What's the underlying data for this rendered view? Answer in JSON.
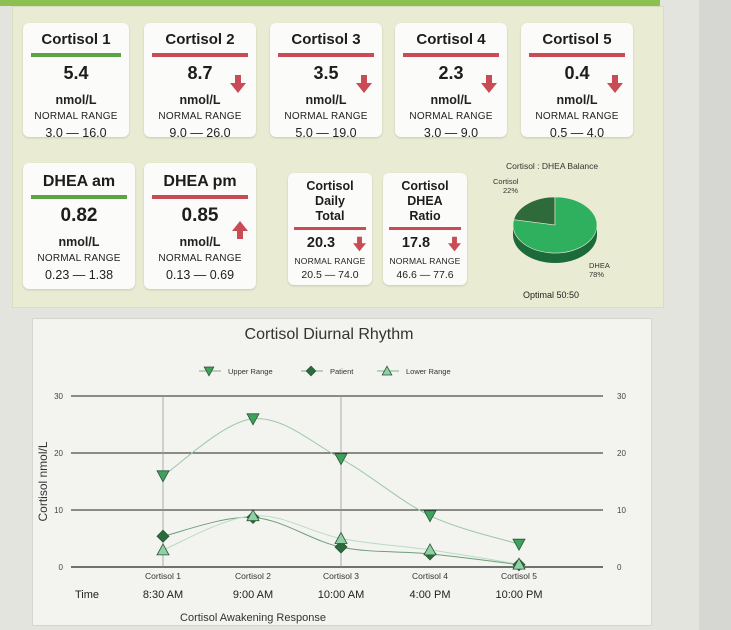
{
  "cards": [
    {
      "title": "Cortisol 1",
      "value": "5.4",
      "unit": "nmol/L",
      "range_label": "NORMAL RANGE",
      "range": "3.0 — 16.0",
      "status": "normal",
      "arrow": "none"
    },
    {
      "title": "Cortisol 2",
      "value": "8.7",
      "unit": "nmol/L",
      "range_label": "NORMAL RANGE",
      "range": "9.0 — 26.0",
      "status": "low",
      "arrow": "down"
    },
    {
      "title": "Cortisol 3",
      "value": "3.5",
      "unit": "nmol/L",
      "range_label": "NORMAL RANGE",
      "range": "5.0 — 19.0",
      "status": "low",
      "arrow": "down"
    },
    {
      "title": "Cortisol 4",
      "value": "2.3",
      "unit": "nmol/L",
      "range_label": "NORMAL RANGE",
      "range": "3.0 — 9.0",
      "status": "low",
      "arrow": "down"
    },
    {
      "title": "Cortisol 5",
      "value": "0.4",
      "unit": "nmol/L",
      "range_label": "NORMAL RANGE",
      "range": "0.5 — 4.0",
      "status": "low",
      "arrow": "down"
    },
    {
      "title": "DHEA am",
      "value": "0.82",
      "unit": "nmol/L",
      "range_label": "NORMAL RANGE",
      "range": "0.23 — 1.38",
      "status": "normal",
      "arrow": "none"
    },
    {
      "title": "DHEA pm",
      "value": "0.85",
      "unit": "nmol/L",
      "range_label": "NORMAL RANGE",
      "range": "0.13 — 0.69",
      "status": "high",
      "arrow": "up"
    }
  ],
  "small_cards": [
    {
      "title_lines": [
        "Cortisol",
        "Daily",
        "Total"
      ],
      "value": "20.3",
      "range_label": "NORMAL RANGE",
      "range": "20.5 — 74.0",
      "status": "low",
      "arrow": "down"
    },
    {
      "title_lines": [
        "Cortisol",
        "DHEA",
        "Ratio"
      ],
      "value": "17.8",
      "range_label": "NORMAL RANGE",
      "range": "46.6 — 77.6",
      "status": "low",
      "arrow": "down"
    }
  ],
  "pie": {
    "title": "Cortisol : DHEA Balance",
    "slices": [
      {
        "label": "Cortisol",
        "percent_label": "22%",
        "value": 22,
        "color": "#2f6b3a"
      },
      {
        "label": "DHEA",
        "percent_label": "78%",
        "value": 78,
        "color": "#2fb05f"
      }
    ],
    "footer": "Optimal 50:50"
  },
  "chart_data": {
    "type": "line",
    "title": "Cortisol Diurnal Rhythm",
    "ylabel": "Cortisol nmol/L",
    "xlabel": "Cortisol Awakening Response",
    "categories": [
      "Cortisol 1",
      "Cortisol 2",
      "Cortisol 3",
      "Cortisol 4",
      "Cortisol 5"
    ],
    "times": [
      "8:30 AM",
      "9:00 AM",
      "10:00 AM",
      "4:00 PM",
      "10:00 PM"
    ],
    "time_label": "Time",
    "ylim": [
      0,
      30
    ],
    "yticks": [
      0,
      10,
      20,
      30
    ],
    "grid": true,
    "legend_position": "top",
    "series": [
      {
        "name": "Upper Range",
        "values": [
          16,
          26,
          19,
          9,
          4
        ],
        "marker": "triangle-down",
        "color": "#3ea15c"
      },
      {
        "name": "Patient",
        "values": [
          5.4,
          8.7,
          3.5,
          2.3,
          0.4
        ],
        "marker": "diamond",
        "color": "#2c6b3c"
      },
      {
        "name": "Lower Range",
        "values": [
          3,
          9,
          5,
          3,
          0.5
        ],
        "marker": "triangle-up",
        "color": "#8fd1a4"
      }
    ]
  },
  "colors": {
    "normal_bar": "#5aa444",
    "abnormal_bar": "#c84b56",
    "panel_bg": "#e9ecd3"
  }
}
